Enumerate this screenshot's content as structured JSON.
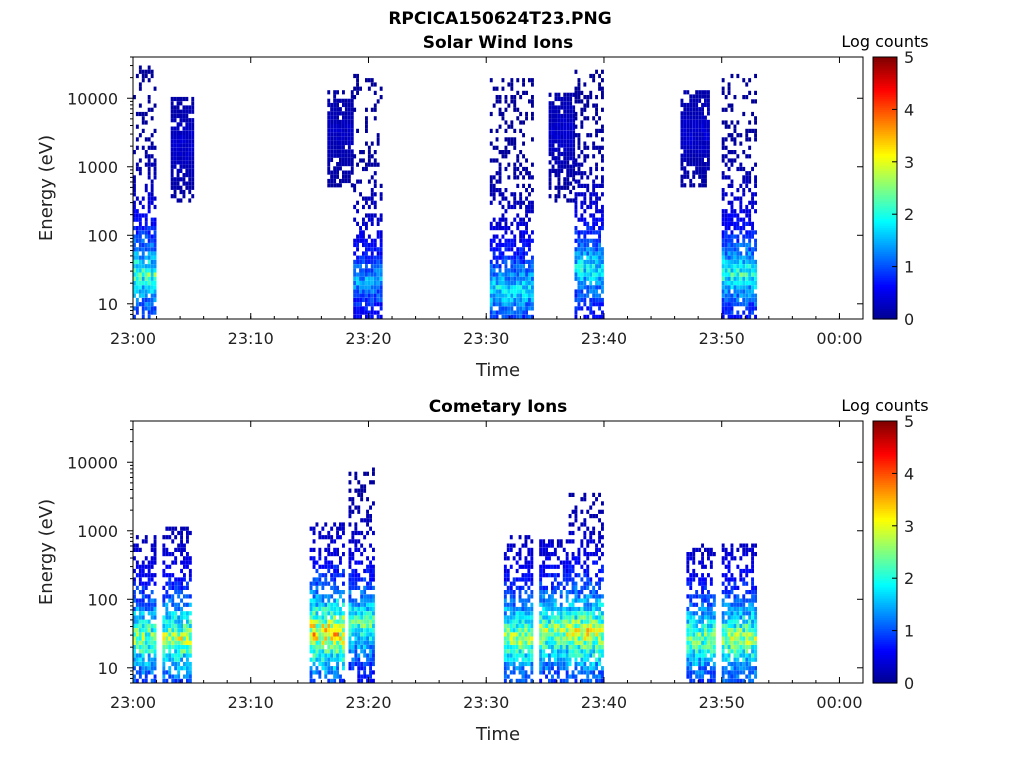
{
  "figure_title": "RPCICA150624T23.PNG",
  "colormap": [
    "#00008f",
    "#0000ff",
    "#0080ff",
    "#00ffff",
    "#80ff80",
    "#ffff00",
    "#ff8000",
    "#ff0000",
    "#800000"
  ],
  "chart_data": [
    {
      "type": "heatmap",
      "title": "Solar Wind Ions",
      "xlabel": "Time",
      "ylabel": "Energy (eV)",
      "yscale": "log",
      "ylim": [
        6,
        40000
      ],
      "xlim": [
        "23:00",
        "00:02"
      ],
      "x_ticks": [
        "23:00",
        "23:10",
        "23:20",
        "23:30",
        "23:40",
        "23:50",
        "00:00"
      ],
      "y_ticks": [
        "10",
        "100",
        "1000",
        "10000"
      ],
      "colorbar": {
        "label": "Log counts",
        "min": 0,
        "max": 5,
        "ticks": [
          "0",
          "1",
          "2",
          "3",
          "4",
          "5"
        ]
      },
      "grid": false,
      "bursts": [
        {
          "t_start": 0.0,
          "t_end": 1.8,
          "e_low": 6,
          "e_high": 30000,
          "peak_log_counts": 2.9,
          "peak_energy": 25
        },
        {
          "t_start": 3.2,
          "t_end": 5.0,
          "e_low": 300,
          "e_high": 10000,
          "peak_log_counts": 0.5,
          "peak_energy": 2000
        },
        {
          "t_start": 16.5,
          "t_end": 18.7,
          "e_low": 500,
          "e_high": 12000,
          "peak_log_counts": 0.4,
          "peak_energy": 3000
        },
        {
          "t_start": 18.7,
          "t_end": 21.0,
          "e_low": 6,
          "e_high": 20000,
          "peak_log_counts": 1.8,
          "peak_energy": 20
        },
        {
          "t_start": 30.3,
          "t_end": 34.0,
          "e_low": 6,
          "e_high": 18000,
          "peak_log_counts": 2.3,
          "peak_energy": 15
        },
        {
          "t_start": 35.3,
          "t_end": 37.5,
          "e_low": 300,
          "e_high": 12000,
          "peak_log_counts": 0.5,
          "peak_energy": 3000
        },
        {
          "t_start": 37.5,
          "t_end": 40.0,
          "e_low": 6,
          "e_high": 25000,
          "peak_log_counts": 2.4,
          "peak_energy": 30
        },
        {
          "t_start": 46.5,
          "t_end": 49.0,
          "e_low": 500,
          "e_high": 12000,
          "peak_log_counts": 0.5,
          "peak_energy": 3000
        },
        {
          "t_start": 50.0,
          "t_end": 53.0,
          "e_low": 6,
          "e_high": 20000,
          "peak_log_counts": 2.6,
          "peak_energy": 25
        }
      ]
    },
    {
      "type": "heatmap",
      "title": "Cometary Ions",
      "xlabel": "Time",
      "ylabel": "Energy (eV)",
      "yscale": "log",
      "ylim": [
        6,
        40000
      ],
      "xlim": [
        "23:00",
        "00:02"
      ],
      "x_ticks": [
        "23:00",
        "23:10",
        "23:20",
        "23:30",
        "23:40",
        "23:50",
        "00:00"
      ],
      "y_ticks": [
        "10",
        "100",
        "1000",
        "10000"
      ],
      "colorbar": {
        "label": "Log counts",
        "min": 0,
        "max": 5,
        "ticks": [
          "0",
          "1",
          "2",
          "3",
          "4",
          "5"
        ]
      },
      "grid": false,
      "bursts": [
        {
          "t_start": 0.0,
          "t_end": 1.8,
          "e_low": 6,
          "e_high": 800,
          "peak_log_counts": 3.3,
          "peak_energy": 25
        },
        {
          "t_start": 2.5,
          "t_end": 5.0,
          "e_low": 6,
          "e_high": 1000,
          "peak_log_counts": 3.6,
          "peak_energy": 25
        },
        {
          "t_start": 15.0,
          "t_end": 18.0,
          "e_low": 6,
          "e_high": 1200,
          "peak_log_counts": 4.2,
          "peak_energy": 30
        },
        {
          "t_start": 18.3,
          "t_end": 20.5,
          "e_low": 6,
          "e_high": 8000,
          "peak_log_counts": 3.0,
          "peak_energy": 40
        },
        {
          "t_start": 31.5,
          "t_end": 33.8,
          "e_low": 6,
          "e_high": 800,
          "peak_log_counts": 3.5,
          "peak_energy": 25
        },
        {
          "t_start": 34.5,
          "t_end": 36.8,
          "e_low": 6,
          "e_high": 700,
          "peak_log_counts": 3.5,
          "peak_energy": 30
        },
        {
          "t_start": 37.0,
          "t_end": 40.0,
          "e_low": 6,
          "e_high": 3500,
          "peak_log_counts": 3.9,
          "peak_energy": 30
        },
        {
          "t_start": 47.0,
          "t_end": 49.5,
          "e_low": 6,
          "e_high": 600,
          "peak_log_counts": 3.2,
          "peak_energy": 25
        },
        {
          "t_start": 50.0,
          "t_end": 53.0,
          "e_low": 6,
          "e_high": 600,
          "peak_log_counts": 3.5,
          "peak_energy": 25
        }
      ]
    }
  ]
}
